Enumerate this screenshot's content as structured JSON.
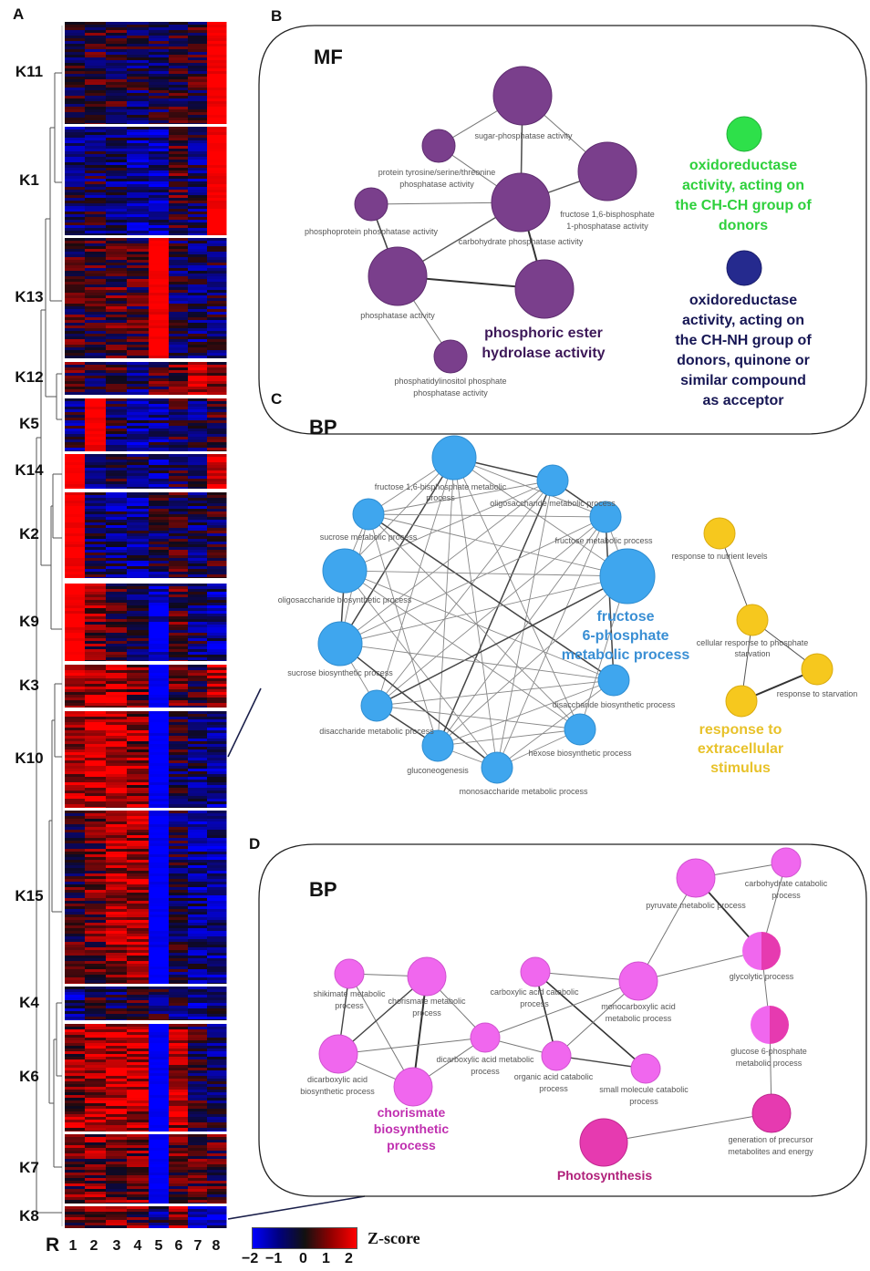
{
  "panels": {
    "a": "A",
    "b": "B",
    "c": "C",
    "d": "D"
  },
  "heatmap": {
    "row_marker": "R",
    "columns": [
      "1",
      "2",
      "3",
      "4",
      "5",
      "6",
      "7",
      "8"
    ],
    "legend_title": "Z-score",
    "legend_ticks": [
      "−2",
      "−1",
      "0",
      "1",
      "2"
    ],
    "clusters": [
      {
        "label": "K11",
        "pattern": [
          0,
          0,
          0,
          -0.2,
          -0.2,
          0,
          0,
          1
        ]
      },
      {
        "label": "K1",
        "pattern": [
          -0.3,
          -0.2,
          -0.3,
          -0.5,
          -0.6,
          0.1,
          -0.3,
          1
        ]
      },
      {
        "label": "K13",
        "pattern": [
          0.1,
          0.1,
          0.2,
          0.1,
          1,
          -0.2,
          -0.3,
          -0.2
        ]
      },
      {
        "label": "K12",
        "pattern": [
          0.1,
          0,
          0,
          -0.3,
          0.1,
          0.3,
          0.8,
          0.4
        ]
      },
      {
        "label": "K5",
        "pattern": [
          -0.3,
          1,
          -0.2,
          -0.5,
          -0.4,
          -0.1,
          -0.3,
          0.1
        ]
      },
      {
        "label": "K14",
        "pattern": [
          1,
          -0.3,
          -0.2,
          -0.3,
          -0.5,
          -0.1,
          -0.2,
          0.8
        ]
      },
      {
        "label": "K2",
        "pattern": [
          1,
          -0.2,
          -0.4,
          -0.4,
          -0.2,
          0,
          -0.3,
          -0.1
        ]
      },
      {
        "label": "K9",
        "pattern": [
          1,
          0.4,
          0.1,
          -0.1,
          -0.8,
          0.2,
          -0.3,
          -0.5
        ]
      },
      {
        "label": "K3",
        "pattern": [
          0.6,
          0.7,
          0.6,
          0.4,
          -1,
          0.2,
          0.1,
          0.6
        ]
      },
      {
        "label": "K10",
        "pattern": [
          0.6,
          0.7,
          0.8,
          0.5,
          -1,
          -0.1,
          -0.4,
          -0.5
        ]
      },
      {
        "label": "K15",
        "pattern": [
          0.1,
          0.3,
          0.6,
          0.6,
          -1,
          -0.2,
          -0.5,
          -0.6
        ]
      },
      {
        "label": "K4",
        "pattern": [
          -0.5,
          0.1,
          -0.2,
          0.2,
          -0.2,
          -0.3,
          -0.5,
          -0.3
        ]
      },
      {
        "label": "K6",
        "pattern": [
          0.5,
          0.6,
          0.7,
          0.7,
          -1,
          0.6,
          -0.1,
          -0.3
        ]
      },
      {
        "label": "K7",
        "pattern": [
          0.3,
          0.4,
          0.3,
          0.4,
          -1,
          0.2,
          0.2,
          0.1
        ]
      },
      {
        "label": "K8",
        "pattern": [
          0.2,
          0.3,
          0.4,
          0.3,
          -0.4,
          0.6,
          -0.9,
          -0.7
        ]
      }
    ]
  },
  "mf": {
    "title": "MF",
    "nodes": [
      "sugar-phosphatase activity",
      "protein tyrosine/serine/threonine",
      "phosphatase activity",
      "fructose 1,6-bisphosphate",
      "1-phosphatase activity",
      "phosphoprotein phosphatase activity",
      "carbohydrate phosphatase activity",
      "phosphatase activity",
      "phosphatidylinositol phosphate",
      "phosphatase activity"
    ],
    "groups": [
      {
        "lines": [
          "phosphoric ester",
          "hydrolase activity"
        ],
        "color": "#3d1858"
      },
      {
        "lines": [
          "oxidoreductase",
          "activity, acting on",
          "the CH-CH group of",
          "donors"
        ],
        "color": "#2ed03c"
      },
      {
        "lines": [
          "oxidoreductase",
          "activity, acting on",
          "the CH-NH group of",
          "donors, quinone or",
          "similar compound",
          "as acceptor"
        ],
        "color": "#161654"
      }
    ],
    "colors": {
      "purple": "#7a3f8c",
      "green": "#2ee04a",
      "navy": "#252a8e"
    }
  },
  "bp1": {
    "title": "BP",
    "nodes": [
      "fructose 1,6-bisphosphate metabolic",
      "process",
      "oligosaccharide metabolic process",
      "sucrose metabolic process",
      "fructose metabolic process",
      "oligosaccharide biosynthetic process",
      "sucrose biosynthetic process",
      "disaccharide biosynthetic process",
      "disaccharide metabolic process",
      "hexose biosynthetic process",
      "gluconeogenesis",
      "monosaccharide metabolic process",
      "response to nutrient levels",
      "cellular response to phosphate",
      "starvation",
      "response to starvation"
    ],
    "groups": [
      {
        "lines": [
          "fructose",
          "6-phosphate",
          "metabolic process"
        ],
        "color": "#3a8fd4"
      },
      {
        "lines": [
          "response to",
          "extracellular",
          "stimulus"
        ],
        "color": "#e8c22a"
      }
    ],
    "colors": {
      "blue": "#3fa6ee",
      "yellow": "#f6c81e"
    }
  },
  "bp2": {
    "title": "BP",
    "nodes": [
      "pyruvate metabolic process",
      "carbohydrate catabolic",
      "process",
      "glycolytic process",
      "shikimate metabolic",
      "process",
      "chorismate metabolic",
      "process",
      "carboxylic acid catabolic",
      "process",
      "monocarboxylic acid",
      "metabolic process",
      "dicarboxylic acid metabolic",
      "process",
      "dicarboxylic acid",
      "biosynthetic process",
      "organic acid catabolic",
      "process",
      "small molecule catabolic",
      "process",
      "glucose 6-phosphate",
      "metabolic process",
      "generation of precursor",
      "metabolites and energy"
    ],
    "groups": [
      {
        "lines": [
          "chorismate",
          "biosynthetic",
          "process"
        ],
        "color": "#c030b0"
      },
      {
        "lines": [
          "Photosynthesis"
        ],
        "color": "#b0207a"
      }
    ],
    "colors": {
      "pink": "#f067ee",
      "magenta": "#e63ab0"
    }
  }
}
